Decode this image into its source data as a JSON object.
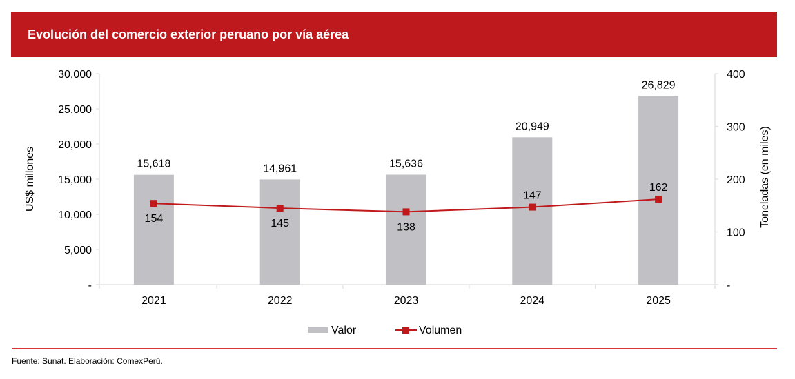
{
  "header": {
    "title": "Evolución del comercio exterior peruano por vía aérea"
  },
  "footer": {
    "source": "Fuente: Sunat. Elaboración: ComexPerú."
  },
  "colors": {
    "header": "#be1a1d",
    "bar": "#c1c0c5",
    "line": "#c0191c",
    "divider": "#d9343a"
  },
  "chart_data": {
    "type": "bar+line",
    "title": "Evolución del comercio exterior peruano por vía aérea",
    "categories": [
      "2021",
      "2022",
      "2023",
      "2024",
      "2025"
    ],
    "series": [
      {
        "name": "Valor",
        "type": "bar",
        "axis": "left",
        "values": [
          15618,
          14961,
          15636,
          20949,
          26829
        ],
        "labels": [
          "15,618",
          "14,961",
          "15,636",
          "20,949",
          "26,829"
        ]
      },
      {
        "name": "Volumen",
        "type": "line",
        "axis": "right",
        "values": [
          154,
          145,
          138,
          147,
          162
        ],
        "labels": [
          "154",
          "145",
          "138",
          "147",
          "162"
        ]
      }
    ],
    "ylabel_left": "US$ millones",
    "ylabel_right": "Toneladas (en miles)",
    "ylim_left": [
      0,
      30000
    ],
    "ylim_right": [
      0,
      400
    ],
    "yticks_left": [
      "-",
      "5,000",
      "10,000",
      "15,000",
      "20,000",
      "25,000",
      "30,000"
    ],
    "yticks_right": [
      "-",
      "100",
      "200",
      "300",
      "400"
    ],
    "legend": [
      "Valor",
      "Volumen"
    ],
    "legend_position": "bottom",
    "grid": false
  }
}
